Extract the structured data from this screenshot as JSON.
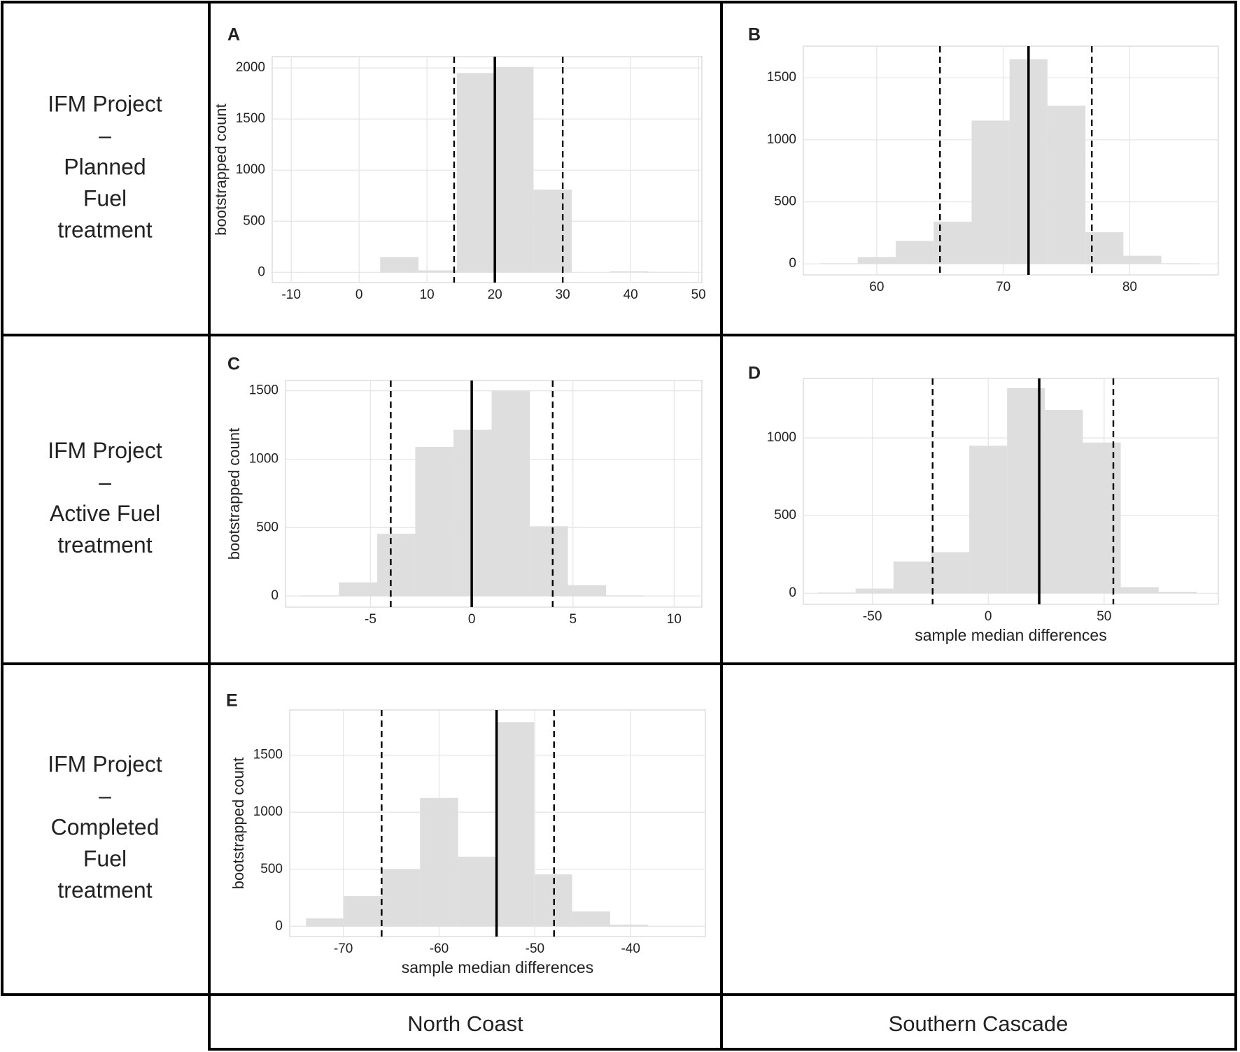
{
  "chart_data": [
    {
      "type": "histogram",
      "label": "A",
      "ylabel": "bootstrapped count",
      "bins": [
        3.1,
        8.75,
        14.4,
        20.05,
        25.7,
        31.35,
        37.0,
        42.65,
        48.3
      ],
      "counts": [
        150,
        20,
        1950,
        2010,
        810,
        0,
        10,
        5
      ],
      "color": "#dedede",
      "xlim": [
        -12.8,
        50.5
      ],
      "ylim": [
        -100,
        2110
      ],
      "xticks": [
        -10,
        0,
        10,
        20,
        30,
        40,
        50
      ],
      "yticks": [
        0,
        500,
        1000,
        1500,
        2000
      ],
      "grid": true,
      "median": 20,
      "ci": [
        14,
        30
      ]
    },
    {
      "type": "histogram",
      "label": "B",
      "bins": [
        55.5,
        58.5,
        61.5,
        64.5,
        67.5,
        70.5,
        73.5,
        76.5,
        79.5,
        82.5,
        85.5
      ],
      "counts": [
        5,
        55,
        185,
        340,
        1155,
        1650,
        1275,
        255,
        65,
        5
      ],
      "color": "#dedede",
      "xlim": [
        54.2,
        87.0
      ],
      "ylim": [
        -89,
        1755
      ],
      "xticks": [
        60,
        70,
        80
      ],
      "yticks": [
        0,
        500,
        1000,
        1500
      ],
      "grid": true,
      "median": 72,
      "ci": [
        65,
        77
      ]
    },
    {
      "type": "histogram",
      "label": "C",
      "ylabel": "bootstrapped count",
      "bins": [
        -8.44,
        -6.56,
        -4.67,
        -2.79,
        -0.9,
        0.98,
        2.87,
        4.75,
        6.64,
        8.52
      ],
      "counts": [
        5,
        100,
        455,
        1090,
        1215,
        1500,
        510,
        80,
        5
      ],
      "color": "#dedede",
      "xlim": [
        -9.2,
        11.37
      ],
      "ylim": [
        -81,
        1575
      ],
      "xticks": [
        -5,
        0,
        5,
        10
      ],
      "yticks": [
        0,
        500,
        1000,
        1500
      ],
      "grid": true,
      "median": 0,
      "ci": [
        -4,
        4
      ]
    },
    {
      "type": "histogram",
      "label": "D",
      "xlabel": "sample median differences",
      "bins": [
        -73.6,
        -57.25,
        -40.9,
        -24.55,
        -8.2,
        8.15,
        24.5,
        40.85,
        57.2,
        73.55,
        89.9
      ],
      "counts": [
        5,
        30,
        205,
        265,
        950,
        1320,
        1180,
        970,
        40,
        10
      ],
      "color": "#dedede",
      "xlim": [
        -79.8,
        99.3
      ],
      "ylim": [
        -71,
        1383
      ],
      "xticks": [
        -50,
        0,
        50
      ],
      "yticks": [
        0,
        500,
        1000
      ],
      "grid": true,
      "median": 22,
      "ci": [
        -24,
        54
      ]
    },
    {
      "type": "histogram",
      "label": "E",
      "ylabel": "bootstrapped count",
      "xlabel": "sample median differences",
      "bins": [
        -73.9,
        -69.93,
        -65.96,
        -61.99,
        -58.02,
        -54.05,
        -50.08,
        -46.11,
        -42.14,
        -38.17
      ],
      "counts": [
        70,
        265,
        500,
        1125,
        610,
        1790,
        455,
        130,
        15
      ],
      "color": "#dedede",
      "xlim": [
        -75.6,
        -32.2
      ],
      "ylim": [
        -90,
        1896
      ],
      "xticks": [
        -70,
        -60,
        -50,
        -40
      ],
      "yticks": [
        0,
        500,
        1000,
        1500
      ],
      "grid": true,
      "median": -54,
      "ci": [
        -66,
        -48
      ]
    }
  ],
  "row_labels": [
    [
      "IFM Project",
      "–",
      "Planned",
      "Fuel",
      "treatment"
    ],
    [
      "IFM Project",
      "–",
      "Active Fuel",
      "treatment"
    ],
    [
      "IFM Project",
      "–",
      "Completed",
      "Fuel",
      "treatment"
    ]
  ],
  "column_labels": [
    "North Coast",
    "Southern Cascade"
  ]
}
